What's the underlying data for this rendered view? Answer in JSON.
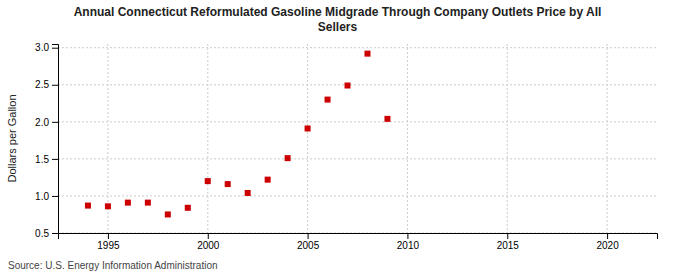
{
  "chart_data": {
    "type": "scatter",
    "title": "Annual Connecticut Reformulated Gasoline Midgrade Through Company Outlets Price by All\nSellers",
    "ylabel": "Dollars per Gallon",
    "annotations": [
      "Source: U.S. Energy Information Administration"
    ],
    "x": [
      1994,
      1995,
      1996,
      1997,
      1998,
      1999,
      2000,
      2001,
      2002,
      2003,
      2004,
      2005,
      2006,
      2007,
      2008,
      2009
    ],
    "values": [
      0.87,
      0.86,
      0.91,
      0.91,
      0.75,
      0.84,
      1.2,
      1.16,
      1.04,
      1.22,
      1.51,
      1.91,
      2.3,
      2.49,
      2.92,
      2.04
    ],
    "color": "#cc0000",
    "marker": "square",
    "xlim": [
      1992.5,
      2022.5
    ],
    "xticks": [
      1995,
      2000,
      2005,
      2010,
      2015,
      2020
    ],
    "ylim": [
      0.5,
      3.05
    ],
    "yticks": [
      0.5,
      {
        "value": 1.0,
        "label": "1.0"
      },
      1.5,
      {
        "value": 2.0,
        "label": "2.0"
      },
      2.5,
      {
        "value": 3.0,
        "label": "3.0"
      }
    ],
    "grid": true
  }
}
